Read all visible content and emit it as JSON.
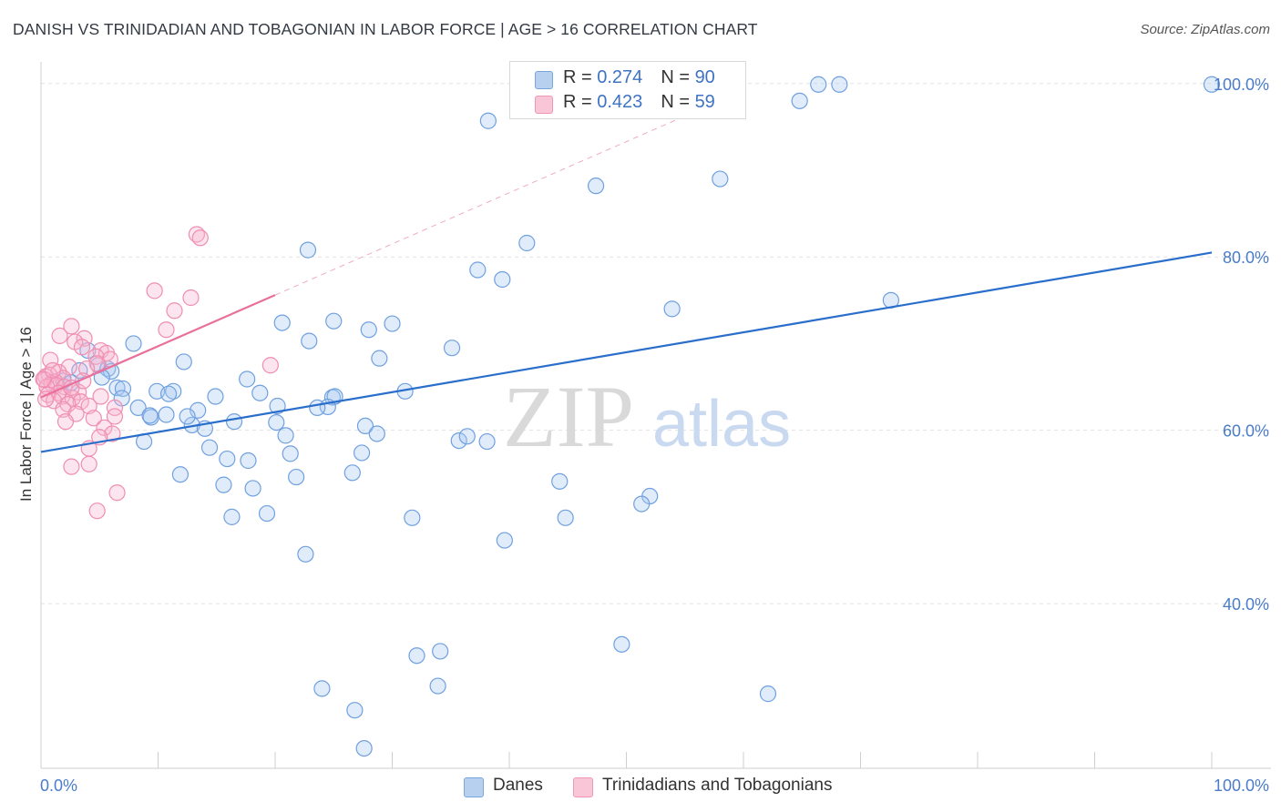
{
  "header": {
    "title": "DANISH VS TRINIDADIAN AND TOBAGONIAN IN LABOR FORCE | AGE > 16 CORRELATION CHART",
    "source": "Source: ZipAtlas.com"
  },
  "watermark": {
    "zip": "ZIP",
    "atlas": "atlas"
  },
  "legend_top": {
    "rows": [
      {
        "r_label": "R = ",
        "r_value": "0.274",
        "n_label": "N = ",
        "n_value": "90"
      },
      {
        "r_label": "R = ",
        "r_value": "0.423",
        "n_label": "N = ",
        "n_value": "59"
      }
    ]
  },
  "chart_data": {
    "type": "scatter",
    "title": "DANISH VS TRINIDADIAN AND TOBAGONIAN IN LABOR FORCE | AGE > 16 CORRELATION CHART",
    "xlabel": "",
    "ylabel": "In Labor Force | Age > 16",
    "xlim": [
      0,
      100
    ],
    "ylim": [
      21,
      102.5
    ],
    "x_ticks": [
      "0.0%",
      "100.0%"
    ],
    "y_ticks": [
      {
        "value": 100,
        "label": "100.0%"
      },
      {
        "value": 80,
        "label": "80.0%"
      },
      {
        "value": 60,
        "label": "60.0%"
      },
      {
        "value": 40,
        "label": "40.0%"
      }
    ],
    "grid": true,
    "legend_position": "bottom",
    "colors": {
      "danes": "#6fa0e0",
      "trini": "#f08db0",
      "danes_line": "#2a6ecb",
      "trini_line": "#e8709b"
    },
    "series": [
      {
        "name": "Danes",
        "r": 0.274,
        "n": 90,
        "trend": {
          "x": [
            0,
            100
          ],
          "y": [
            57.5,
            80.5
          ]
        },
        "points": [
          [
            43.2,
            100.5
          ],
          [
            66.4,
            99.9
          ],
          [
            68.2,
            99.9
          ],
          [
            100,
            99.9
          ],
          [
            64.8,
            98.0
          ],
          [
            38.2,
            95.7
          ],
          [
            47.4,
            88.2
          ],
          [
            58.0,
            89.0
          ],
          [
            22.8,
            80.8
          ],
          [
            41.5,
            81.6
          ],
          [
            37.3,
            78.5
          ],
          [
            39.4,
            77.4
          ],
          [
            72.6,
            75.0
          ],
          [
            53.9,
            74.0
          ],
          [
            20.6,
            72.4
          ],
          [
            25.0,
            72.6
          ],
          [
            30.0,
            72.3
          ],
          [
            28.0,
            71.6
          ],
          [
            22.9,
            70.3
          ],
          [
            7.9,
            70.0
          ],
          [
            35.1,
            69.5
          ],
          [
            4.0,
            69.2
          ],
          [
            28.9,
            68.3
          ],
          [
            12.2,
            67.9
          ],
          [
            4.9,
            67.5
          ],
          [
            5.7,
            67.1
          ],
          [
            6.0,
            66.8
          ],
          [
            3.3,
            66.9
          ],
          [
            17.6,
            65.9
          ],
          [
            1.9,
            65.7
          ],
          [
            2.6,
            65.5
          ],
          [
            6.5,
            64.9
          ],
          [
            7.0,
            64.8
          ],
          [
            9.9,
            64.5
          ],
          [
            11.3,
            64.5
          ],
          [
            10.9,
            64.2
          ],
          [
            18.7,
            64.3
          ],
          [
            31.1,
            64.5
          ],
          [
            24.9,
            63.8
          ],
          [
            25.1,
            63.9
          ],
          [
            14.9,
            63.9
          ],
          [
            6.9,
            63.7
          ],
          [
            20.2,
            62.8
          ],
          [
            8.3,
            62.6
          ],
          [
            13.4,
            62.3
          ],
          [
            24.5,
            62.7
          ],
          [
            10.7,
            61.8
          ],
          [
            9.4,
            61.5
          ],
          [
            20.1,
            60.9
          ],
          [
            16.5,
            61.0
          ],
          [
            12.9,
            60.6
          ],
          [
            14.0,
            60.2
          ],
          [
            27.7,
            60.5
          ],
          [
            28.7,
            59.6
          ],
          [
            8.8,
            58.7
          ],
          [
            35.7,
            58.8
          ],
          [
            38.1,
            58.7
          ],
          [
            14.4,
            58.0
          ],
          [
            21.3,
            57.3
          ],
          [
            27.4,
            57.4
          ],
          [
            15.9,
            56.7
          ],
          [
            17.7,
            56.5
          ],
          [
            11.9,
            54.9
          ],
          [
            26.6,
            55.1
          ],
          [
            21.8,
            54.6
          ],
          [
            44.3,
            54.1
          ],
          [
            15.6,
            53.7
          ],
          [
            18.1,
            53.3
          ],
          [
            52.0,
            52.4
          ],
          [
            51.3,
            51.5
          ],
          [
            19.3,
            50.4
          ],
          [
            16.3,
            50.0
          ],
          [
            31.7,
            49.9
          ],
          [
            44.8,
            49.9
          ],
          [
            39.6,
            47.3
          ],
          [
            22.6,
            45.7
          ],
          [
            49.6,
            35.3
          ],
          [
            34.1,
            34.5
          ],
          [
            32.1,
            34.0
          ],
          [
            33.9,
            30.5
          ],
          [
            24.0,
            30.2
          ],
          [
            62.1,
            29.6
          ],
          [
            26.8,
            27.7
          ],
          [
            27.6,
            23.3
          ],
          [
            23.6,
            62.6
          ],
          [
            20.9,
            59.4
          ],
          [
            5.2,
            66.1
          ],
          [
            9.3,
            61.7
          ],
          [
            12.5,
            61.6
          ],
          [
            36.4,
            59.3
          ]
        ]
      },
      {
        "name": "Trinidadians and Tobagonians",
        "r": 0.423,
        "n": 59,
        "trend": {
          "x": [
            0,
            20.0
          ],
          "y": [
            63.8,
            75.6
          ],
          "dashed_to": [
            100,
            104
          ]
        },
        "points": [
          [
            13.3,
            82.6
          ],
          [
            13.6,
            82.2
          ],
          [
            9.7,
            76.1
          ],
          [
            12.8,
            75.3
          ],
          [
            11.4,
            73.8
          ],
          [
            2.6,
            72.0
          ],
          [
            10.7,
            71.6
          ],
          [
            1.6,
            70.9
          ],
          [
            3.7,
            70.6
          ],
          [
            2.9,
            70.2
          ],
          [
            3.5,
            69.6
          ],
          [
            5.1,
            69.2
          ],
          [
            5.6,
            68.9
          ],
          [
            4.7,
            68.5
          ],
          [
            5.9,
            68.2
          ],
          [
            0.8,
            68.1
          ],
          [
            4.8,
            67.7
          ],
          [
            19.6,
            67.5
          ],
          [
            2.4,
            67.3
          ],
          [
            3.9,
            67.1
          ],
          [
            1.5,
            66.7
          ],
          [
            0.7,
            66.4
          ],
          [
            0.4,
            66.2
          ],
          [
            1.9,
            66.0
          ],
          [
            0.3,
            65.8
          ],
          [
            1.2,
            65.6
          ],
          [
            0.9,
            65.4
          ],
          [
            1.3,
            65.2
          ],
          [
            0.5,
            65.0
          ],
          [
            2.0,
            65.0
          ],
          [
            3.2,
            64.4
          ],
          [
            1.5,
            64.3
          ],
          [
            0.6,
            64.1
          ],
          [
            1.8,
            63.9
          ],
          [
            5.1,
            63.9
          ],
          [
            2.7,
            63.7
          ],
          [
            1.1,
            63.4
          ],
          [
            3.4,
            63.3
          ],
          [
            2.3,
            63.0
          ],
          [
            4.1,
            62.8
          ],
          [
            1.9,
            62.4
          ],
          [
            6.3,
            62.6
          ],
          [
            3.0,
            61.9
          ],
          [
            6.3,
            61.6
          ],
          [
            4.5,
            61.4
          ],
          [
            2.1,
            61.0
          ],
          [
            5.4,
            60.3
          ],
          [
            6.1,
            59.6
          ],
          [
            5.0,
            59.2
          ],
          [
            4.1,
            57.9
          ],
          [
            4.1,
            56.1
          ],
          [
            2.6,
            55.8
          ],
          [
            6.5,
            52.8
          ],
          [
            4.8,
            50.7
          ],
          [
            0.2,
            65.9
          ],
          [
            1.0,
            66.9
          ],
          [
            2.6,
            64.9
          ],
          [
            3.6,
            65.7
          ],
          [
            0.4,
            63.6
          ]
        ]
      }
    ]
  },
  "legend_bottom": {
    "items": [
      {
        "label": "Danes"
      },
      {
        "label": "Trinidadians and Tobagonians"
      }
    ]
  }
}
